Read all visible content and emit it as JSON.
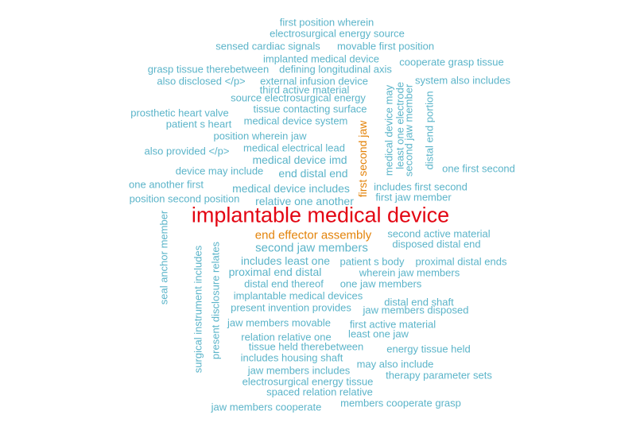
{
  "words": [
    "implantable medical device",
    "end effector assembly",
    "first second jaw",
    "first position wherein",
    "electrosurgical energy source",
    "sensed cardiac signals",
    "movable first position",
    "implanted medical device",
    "cooperate grasp tissue",
    "grasp tissue therebetween",
    "defining longitudinal axis",
    "also disclosed </p>",
    "external infusion device",
    "system also includes",
    "third active material",
    "source electrosurgical energy",
    "medical device may",
    "least one electrode",
    "second jaw member",
    "distal end portion",
    "prosthetic heart valve",
    "tissue contacting surface",
    "patient s heart",
    "medical device system",
    "position wherein jaw",
    "also provided </p>",
    "medical electrical lead",
    "medical device imd",
    "device may include",
    "end distal end",
    "one first second",
    "one another first",
    "medical device includes",
    "includes first second",
    "position second position",
    "relative one another",
    "first jaw member",
    "seal anchor member",
    "second active material",
    "disposed distal end",
    "second jaw members",
    "surgical instrument includes",
    "present disclosure relates",
    "includes least one",
    "patient s body",
    "proximal distal ends",
    "proximal end distal",
    "wherein jaw members",
    "distal end thereof",
    "one jaw members",
    "implantable medical devices",
    "distal end shaft",
    "present invention provides",
    "jaw members disposed",
    "jaw members movable",
    "first active material",
    "relation relative one",
    "least one jaw",
    "tissue held therebetween",
    "energy tissue held",
    "includes housing shaft",
    "may also include",
    "jaw members includes",
    "therapy parameter sets",
    "electrosurgical energy tissue",
    "spaced relation relative",
    "jaw members cooperate",
    "members cooperate grasp"
  ]
}
